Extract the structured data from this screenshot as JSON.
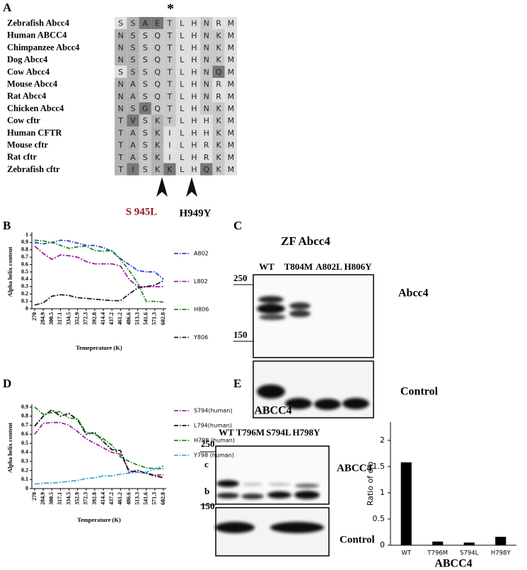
{
  "alignment": {
    "panel": "A",
    "star": "*",
    "rows": [
      {
        "name": "Zebrafish Abcc4",
        "residues": [
          "S",
          "S",
          "A",
          "E",
          "T",
          "L",
          "H",
          "N",
          "R",
          "M"
        ]
      },
      {
        "name": "Human ABCC4",
        "residues": [
          "N",
          "S",
          "S",
          "Q",
          "T",
          "L",
          "H",
          "N",
          "K",
          "M"
        ]
      },
      {
        "name": "Chimpanzee Abcc4",
        "residues": [
          "N",
          "S",
          "S",
          "Q",
          "T",
          "L",
          "H",
          "N",
          "K",
          "M"
        ]
      },
      {
        "name": "Dog Abcc4",
        "residues": [
          "N",
          "S",
          "S",
          "Q",
          "T",
          "L",
          "H",
          "N",
          "K",
          "M"
        ]
      },
      {
        "name": "Cow Abcc4",
        "residues": [
          "S",
          "S",
          "S",
          "Q",
          "T",
          "L",
          "H",
          "N",
          "Q",
          "M"
        ]
      },
      {
        "name": "Mouse Abcc4",
        "residues": [
          "N",
          "A",
          "S",
          "Q",
          "T",
          "L",
          "H",
          "N",
          "R",
          "M"
        ]
      },
      {
        "name": "Rat Abcc4",
        "residues": [
          "N",
          "A",
          "S",
          "Q",
          "T",
          "L",
          "H",
          "N",
          "R",
          "M"
        ]
      },
      {
        "name": "Chicken Abcc4",
        "residues": [
          "N",
          "S",
          "G",
          "Q",
          "T",
          "L",
          "H",
          "N",
          "K",
          "M"
        ]
      },
      {
        "name": "Cow cftr",
        "residues": [
          "T",
          "V",
          "S",
          "K",
          "T",
          "L",
          "H",
          "H",
          "K",
          "M"
        ]
      },
      {
        "name": "Human CFTR",
        "residues": [
          "T",
          "A",
          "S",
          "K",
          "I",
          "L",
          "H",
          "H",
          "K",
          "M"
        ]
      },
      {
        "name": "Mouse cftr",
        "residues": [
          "T",
          "A",
          "S",
          "K",
          "I",
          "L",
          "H",
          "R",
          "K",
          "M"
        ]
      },
      {
        "name": "Rat cftr",
        "residues": [
          "T",
          "A",
          "S",
          "K",
          "I",
          "L",
          "H",
          "R",
          "K",
          "M"
        ]
      },
      {
        "name": "Zebrafish cftr",
        "residues": [
          "T",
          "I",
          "S",
          "K",
          "K",
          "L",
          "H",
          "Q",
          "K",
          "M"
        ]
      }
    ],
    "mutations": [
      "S 945L",
      "H949Y"
    ]
  },
  "chart_data": [
    {
      "type": "line",
      "panel": "B",
      "xlabel": "Temeperature (K)",
      "ylabel": "Alpha helix content",
      "categories": [
        "270",
        "284.9",
        "300.5",
        "317.1",
        "334.5",
        "352.9",
        "372.3",
        "392.8",
        "414.4",
        "437.2",
        "461.2",
        "486.6",
        "513.3",
        "541.6",
        "571.3",
        "602.8"
      ],
      "ylim": [
        0,
        1
      ],
      "yticks": [
        0,
        0.1,
        0.2,
        0.3,
        0.4,
        0.5,
        0.6,
        0.7,
        0.8,
        0.9,
        1
      ],
      "legend": "right",
      "series": [
        {
          "name": "A802",
          "color": "#2a3fd0",
          "values": [
            0.9,
            0.88,
            0.9,
            0.93,
            0.92,
            0.89,
            0.86,
            0.86,
            0.83,
            0.78,
            0.68,
            0.6,
            0.52,
            0.5,
            0.5,
            0.4
          ]
        },
        {
          "name": "L802",
          "color": "#a020a0",
          "values": [
            0.85,
            0.75,
            0.67,
            0.73,
            0.72,
            0.7,
            0.64,
            0.61,
            0.61,
            0.61,
            0.58,
            0.4,
            0.3,
            0.3,
            0.3,
            0.3
          ]
        },
        {
          "name": "H806",
          "color": "#1a8a1a",
          "values": [
            0.93,
            0.92,
            0.9,
            0.86,
            0.82,
            0.84,
            0.85,
            0.79,
            0.78,
            0.79,
            0.67,
            0.52,
            0.35,
            0.1,
            0.1,
            0.09
          ]
        },
        {
          "name": "Y806",
          "color": "#222222",
          "values": [
            0.05,
            0.08,
            0.17,
            0.19,
            0.18,
            0.15,
            0.14,
            0.13,
            0.12,
            0.11,
            0.11,
            0.2,
            0.28,
            0.3,
            0.32,
            0.38
          ]
        }
      ]
    },
    {
      "type": "line",
      "panel": "D",
      "xlabel": "Temperature (K)",
      "ylabel": "Alpha helix content",
      "categories": [
        "270",
        "284.9",
        "300.5",
        "317.1",
        "334.5",
        "352.9",
        "372.3",
        "392.8",
        "414.4",
        "437.2",
        "461.2",
        "486.6",
        "513.3",
        "541.6",
        "571.3",
        "602.8"
      ],
      "ylim": [
        0,
        0.9
      ],
      "yticks": [
        0,
        0.1,
        0.2,
        0.3,
        0.4,
        0.5,
        0.6,
        0.7,
        0.8,
        0.9
      ],
      "legend": "right",
      "series": [
        {
          "name": "S794(human)",
          "color": "#a020a0",
          "values": [
            0.6,
            0.72,
            0.73,
            0.73,
            0.7,
            0.63,
            0.55,
            0.5,
            0.45,
            0.4,
            0.38,
            0.2,
            0.18,
            0.17,
            0.15,
            0.15
          ]
        },
        {
          "name": "L794(human)",
          "color": "#111111",
          "values": [
            0.69,
            0.8,
            0.87,
            0.8,
            0.83,
            0.76,
            0.6,
            0.62,
            0.52,
            0.43,
            0.42,
            0.18,
            0.2,
            0.17,
            0.14,
            0.12
          ]
        },
        {
          "name": "H798 (human)",
          "color": "#1a8a1a",
          "values": [
            0.9,
            0.82,
            0.84,
            0.85,
            0.78,
            0.77,
            0.62,
            0.6,
            0.55,
            0.48,
            0.35,
            0.3,
            0.26,
            0.23,
            0.22,
            0.22
          ]
        },
        {
          "name": "Y798 (human)",
          "color": "#3fa9e0",
          "values": [
            0.05,
            0.06,
            0.06,
            0.07,
            0.08,
            0.09,
            0.11,
            0.12,
            0.14,
            0.14,
            0.16,
            0.17,
            0.18,
            0.18,
            0.22,
            0.25
          ]
        }
      ]
    },
    {
      "type": "bar",
      "ylabel": "Ratio of c/b",
      "xlabel": "ABCC4",
      "categories": [
        "WT",
        "T796M",
        "S794L",
        "H798Y"
      ],
      "values": [
        1.58,
        0.07,
        0.05,
        0.16
      ],
      "color": "#000000",
      "ylim": [
        0,
        2.35
      ],
      "yticks": [
        0,
        0.5,
        1,
        1.5,
        2
      ]
    }
  ],
  "blots": [
    {
      "panel": "C",
      "title": "ZF Abcc4",
      "lanes": [
        "WT",
        "T804M",
        "A802L",
        "H806Y"
      ],
      "markers": [
        250,
        150
      ],
      "labels": [
        "Abcc4",
        "Control"
      ]
    },
    {
      "panel": "E",
      "title": "ABCC4",
      "lanes": [
        "WT",
        "T796M",
        "S794L",
        "H798Y"
      ],
      "markers": [
        250,
        150
      ],
      "bands": [
        "c",
        "b"
      ],
      "labels": [
        "ABCC4",
        "Control"
      ]
    }
  ]
}
